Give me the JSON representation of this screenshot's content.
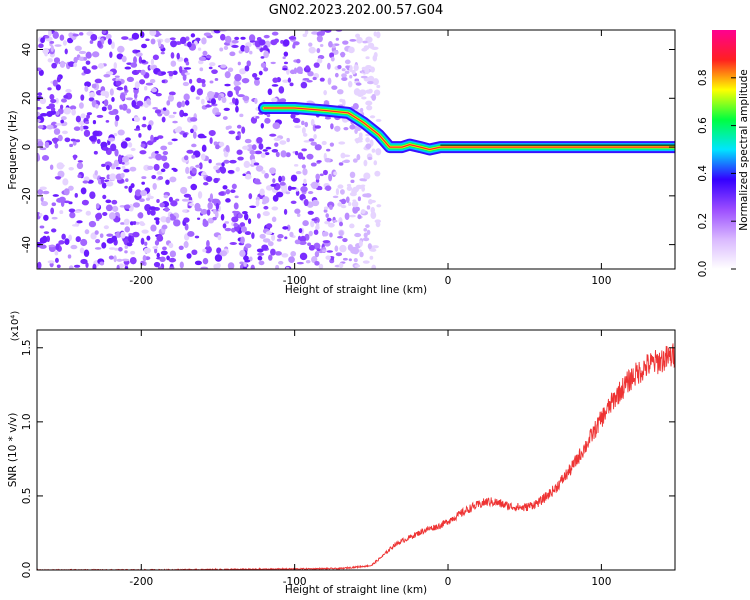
{
  "title": "GN02.2023.202.00.57.G04",
  "chart_data": [
    {
      "type": "heatmap",
      "xlabel": "Height of straight line (km)",
      "ylabel": "Frequency (Hz)",
      "xlim": [
        -268,
        148
      ],
      "ylim": [
        -50,
        48
      ],
      "xticks": [
        -200,
        -100,
        0,
        100
      ],
      "yticks": [
        -40,
        -20,
        0,
        20,
        40
      ],
      "colorbar": {
        "label": "Normalized spectral amplitude",
        "range": [
          0,
          1
        ],
        "ticks": [
          "0.0",
          "0.2",
          "0.4",
          "0.6",
          "0.8"
        ],
        "colors": [
          "#ffffff",
          "#d9b8ff",
          "#9b4dff",
          "#3300ff",
          "#00e5ff",
          "#00ff40",
          "#ffff00",
          "#ff2020",
          "#ff0090"
        ]
      },
      "noise_region_x": [
        -268,
        -60
      ],
      "ridge": {
        "x": [
          -120,
          -100,
          -80,
          -65,
          -55,
          -45,
          -38,
          -30,
          -25,
          -18,
          -12,
          -5,
          0,
          20,
          60,
          100,
          148
        ],
        "y": [
          16,
          16,
          15,
          14,
          10,
          5,
          0,
          0,
          1,
          0,
          -1,
          0,
          0,
          0,
          0,
          0,
          0
        ]
      }
    },
    {
      "type": "line",
      "xlabel": "Height of straight line (km)",
      "ylabel": "SNR (10 * v/v)",
      "yscale_label": "(x10⁴)",
      "xlim": [
        -268,
        148
      ],
      "ylim": [
        0,
        1.62
      ],
      "xticks": [
        -200,
        -100,
        0,
        100
      ],
      "yticks": [
        "0.0",
        "0.5",
        "1.0",
        "1.5"
      ],
      "line_color": "#ee3333",
      "series": [
        {
          "x": [
            -268,
            -200,
            -120,
            -70,
            -50,
            -42,
            -35,
            -25,
            -15,
            -5,
            5,
            15,
            25,
            30,
            40,
            50,
            60,
            70,
            80,
            90,
            100,
            110,
            120,
            130,
            140,
            148
          ],
          "y": [
            0.0,
            0.0,
            0.005,
            0.01,
            0.03,
            0.1,
            0.17,
            0.22,
            0.27,
            0.3,
            0.36,
            0.42,
            0.46,
            0.46,
            0.43,
            0.42,
            0.46,
            0.55,
            0.68,
            0.84,
            1.02,
            1.18,
            1.3,
            1.38,
            1.42,
            1.45
          ]
        }
      ]
    }
  ]
}
